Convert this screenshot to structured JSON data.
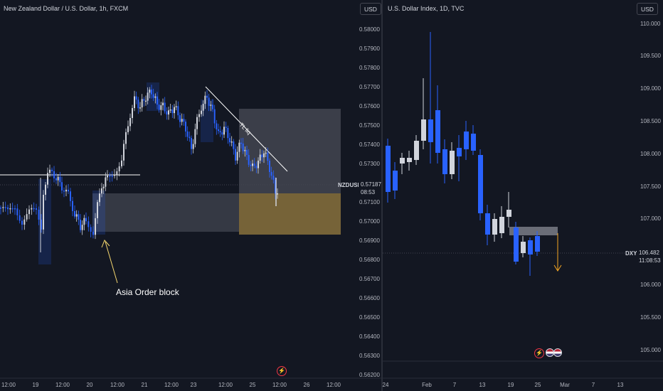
{
  "left_chart": {
    "title": "New Zealand Dollar / U.S. Dollar, 1h, FXCM",
    "currency_button": "USD",
    "symbol": "NZDUSD",
    "last_price": "0.57187",
    "countdown": "08:53",
    "y_ticks": [
      "0.58000",
      "0.57900",
      "0.57800",
      "0.57700",
      "0.57600",
      "0.57500",
      "0.57400",
      "0.57300",
      "0.57200",
      "0.57100",
      "0.57000",
      "0.56900",
      "0.56800",
      "0.56700",
      "0.56600",
      "0.56500",
      "0.56400",
      "0.56300",
      "0.56200"
    ],
    "x_ticks": [
      "12:00",
      "19",
      "12:00",
      "20",
      "12:00",
      "21",
      "12:00",
      "23",
      "12:00",
      "25",
      "12:00",
      "26",
      "12:00"
    ],
    "annotation": "Asia Order block",
    "trendline_label": "TL liq",
    "colors": {
      "up": "#d1d4dc",
      "down": "#2962ff",
      "zone": "#b2b5be",
      "demand": "#c8a24a"
    }
  },
  "right_chart": {
    "title": "U.S. Dollar Index, 1D, TVC",
    "currency_button": "USD",
    "symbol": "DXY",
    "last_price": "106.482",
    "countdown": "11:08:53",
    "y_ticks": [
      "110.000",
      "109.500",
      "109.000",
      "108.500",
      "108.000",
      "107.500",
      "107.000",
      "106.500",
      "106.000",
      "105.500",
      "105.000"
    ],
    "x_ticks": [
      "24",
      "Feb",
      "7",
      "13",
      "19",
      "25",
      "Mar",
      "7",
      "13"
    ],
    "colors": {
      "up": "#d1d4dc",
      "down": "#2962ff"
    }
  }
}
